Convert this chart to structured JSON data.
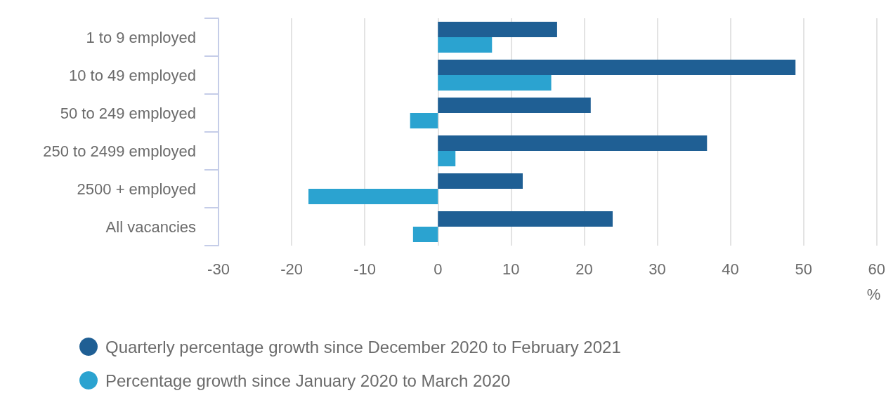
{
  "chart_data": {
    "type": "bar",
    "orientation": "horizontal",
    "categories": [
      "1 to 9 employed",
      "10 to 49 employed",
      "50 to 249 employed",
      "250 to 2499 employed",
      "2500 + employed",
      "All vacancies"
    ],
    "series": [
      {
        "name": "Quarterly percentage growth since December 2020 to February 2021",
        "color": "#1f5f94",
        "values": [
          16.3,
          48.9,
          20.9,
          36.8,
          11.6,
          23.9
        ]
      },
      {
        "name": "Percentage growth since January 2020 to March 2020",
        "color": "#2ba3d0",
        "values": [
          7.4,
          15.5,
          -3.8,
          2.4,
          -17.7,
          -3.4
        ]
      }
    ],
    "xlim": [
      -30,
      60
    ],
    "xticks": [
      -30,
      -20,
      -10,
      0,
      10,
      20,
      30,
      40,
      50,
      60
    ],
    "xlabel": "%",
    "grid": "x",
    "legend": "bottom left"
  }
}
